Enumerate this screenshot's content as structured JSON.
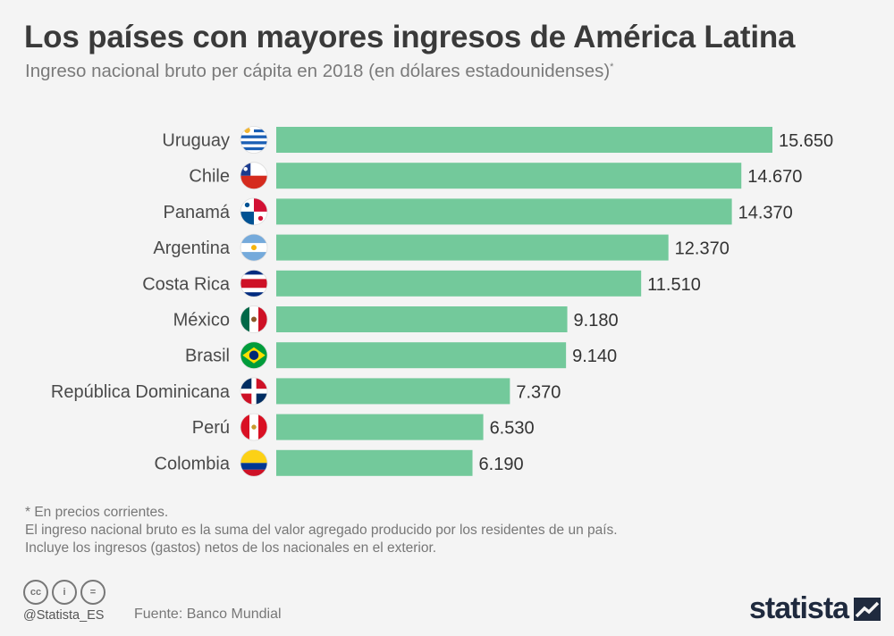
{
  "header": {
    "title": "Los países con mayores ingresos de América Latina",
    "subtitle": "Ingreso nacional bruto per cápita en 2018 (en dólares estadounidenses)",
    "subtitle_mark": "*"
  },
  "chart_data": {
    "type": "bar",
    "orientation": "horizontal",
    "categories": [
      "Uruguay",
      "Chile",
      "Panamá",
      "Argentina",
      "Costa Rica",
      "México",
      "Brasil",
      "República Dominicana",
      "Perú",
      "Colombia"
    ],
    "values": [
      15650,
      14670,
      14370,
      12370,
      11510,
      9180,
      9140,
      7370,
      6530,
      6190
    ],
    "value_labels": [
      "15.650",
      "14.670",
      "14.370",
      "12.370",
      "11.510",
      "9.180",
      "9.140",
      "7.370",
      "6.530",
      "6.190"
    ],
    "flags": [
      "flag-uruguay-icon",
      "flag-chile-icon",
      "flag-panama-icon",
      "flag-argentina-icon",
      "flag-costa-rica-icon",
      "flag-mexico-icon",
      "flag-brazil-icon",
      "flag-dominican-republic-icon",
      "flag-peru-icon",
      "flag-colombia-icon"
    ],
    "xlim": [
      0,
      15650
    ],
    "grid": false,
    "bar_color": "#73c99b",
    "unit": "US$"
  },
  "notes": {
    "line1": "* En precios corrientes.",
    "line2": "El ingreso nacional bruto es la suma del valor agregado producido por los residentes de un país.",
    "line3": "Incluye los ingresos (gastos) netos de los nacionales en el exterior."
  },
  "footer": {
    "handle": "@Statista_ES",
    "source": "Fuente: Banco Mundial",
    "brand": "statista",
    "license_icons": [
      "cc-icon",
      "attribution-icon",
      "no-derivatives-icon"
    ],
    "license_glyphs": [
      "cc",
      "i",
      "="
    ]
  }
}
